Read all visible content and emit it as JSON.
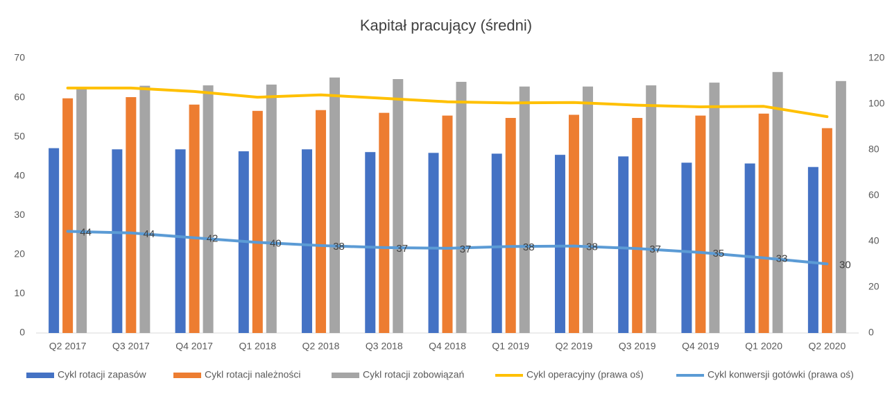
{
  "chart_data": {
    "type": "bar",
    "title": "Kapitał pracujący (średni)",
    "categories": [
      "Q2 2017",
      "Q3 2017",
      "Q4 2017",
      "Q1 2018",
      "Q2 2018",
      "Q3 2018",
      "Q4 2018",
      "Q1 2019",
      "Q2 2019",
      "Q3 2019",
      "Q4 2019",
      "Q1 2020",
      "Q2 2020"
    ],
    "series": [
      {
        "name": "Cykl rotacji zapasów",
        "type": "bar",
        "color": "#4472c4",
        "values": [
          47.1,
          46.8,
          46.8,
          46.3,
          46.8,
          46.1,
          45.9,
          45.7,
          45.4,
          45.0,
          43.4,
          43.2,
          42.3
        ]
      },
      {
        "name": "Cykl rotacji należności",
        "type": "bar",
        "color": "#ed7d31",
        "values": [
          59.8,
          60.1,
          58.2,
          56.6,
          56.8,
          56.1,
          55.4,
          54.8,
          55.6,
          54.8,
          55.4,
          55.9,
          52.2
        ]
      },
      {
        "name": "Cykl rotacji zobowiązań",
        "type": "bar",
        "color": "#a5a5a5",
        "values": [
          62.7,
          63.0,
          63.1,
          63.3,
          65.1,
          64.7,
          64.0,
          62.8,
          62.8,
          63.1,
          63.8,
          66.5,
          64.2
        ]
      },
      {
        "name": "Cykl operacyjny (prawa oś)",
        "type": "line",
        "axis": "y2",
        "color": "#ffc000",
        "values": [
          107,
          107,
          105.5,
          103,
          104,
          102.5,
          101,
          100.5,
          100.7,
          99.5,
          98.8,
          99,
          94.5
        ]
      },
      {
        "name": "Cykl konwersji gotówki (prawa oś)",
        "type": "line",
        "axis": "y2",
        "color": "#5b9bd5",
        "values": [
          44.4,
          43.7,
          41.6,
          39.6,
          38.2,
          37.3,
          37.0,
          37.8,
          38.0,
          36.9,
          35.2,
          32.8,
          30.2
        ],
        "value_labels": [
          "44",
          "44",
          "42",
          "40",
          "38",
          "37",
          "37",
          "38",
          "38",
          "37",
          "35",
          "33",
          "30"
        ]
      }
    ],
    "ylim": [
      0,
      70
    ],
    "yticks": [
      0,
      10,
      20,
      30,
      40,
      50,
      60,
      70
    ],
    "y2lim": [
      0,
      120
    ],
    "y2ticks": [
      0,
      20,
      40,
      60,
      80,
      100,
      120
    ],
    "grid": false,
    "legend": "bottom"
  }
}
